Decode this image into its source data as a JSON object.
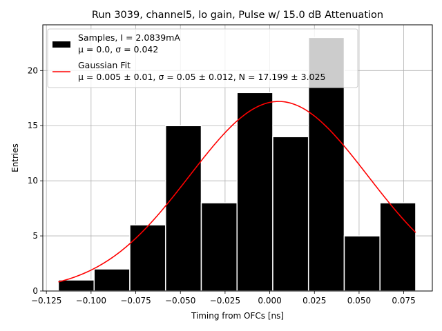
{
  "chart_data": {
    "type": "bar",
    "title": "Run 3039, channel5, lo gain, Pulse w/ 15.0 dB Attenuation",
    "xlabel": "Timing from OFCs [ns]",
    "ylabel": "Entries",
    "xlim": [
      -0.127,
      0.091
    ],
    "ylim": [
      0,
      24.15
    ],
    "grid": true,
    "legend_position": "top-left",
    "x_ticks": [
      {
        "value": -0.125,
        "label": "−0.125"
      },
      {
        "value": -0.1,
        "label": "−0.100"
      },
      {
        "value": -0.075,
        "label": "−0.075"
      },
      {
        "value": -0.05,
        "label": "−0.050"
      },
      {
        "value": -0.025,
        "label": "−0.025"
      },
      {
        "value": 0.0,
        "label": "0.000"
      },
      {
        "value": 0.025,
        "label": "0.025"
      },
      {
        "value": 0.05,
        "label": "0.050"
      },
      {
        "value": 0.075,
        "label": "0.075"
      }
    ],
    "y_ticks": [
      {
        "value": 0,
        "label": "0"
      },
      {
        "value": 5,
        "label": "5"
      },
      {
        "value": 10,
        "label": "10"
      },
      {
        "value": 15,
        "label": "15"
      },
      {
        "value": 20,
        "label": "20"
      }
    ],
    "histogram": {
      "bin_edges": [
        -0.1183,
        -0.0983,
        -0.0783,
        -0.0583,
        -0.0383,
        -0.0183,
        0.0017,
        0.0217,
        0.0417,
        0.0617,
        0.0817
      ],
      "counts": [
        1,
        2,
        6,
        15,
        8,
        18,
        14,
        23,
        5,
        8
      ],
      "color": "#000000",
      "edge_color": "#ffffff"
    },
    "highlight_bar": {
      "bin_index": 7,
      "value": 23,
      "color": "#cccccc"
    },
    "gaussian_fit": {
      "mu": 0.005,
      "sigma": 0.05,
      "N": 17.199,
      "x_range": [
        -0.1183,
        0.0817
      ],
      "color": "#ff0000"
    },
    "legend": [
      {
        "swatch": "rect",
        "color": "#000000",
        "line1": "Samples, I = 2.0839mA",
        "line2": "μ = 0.0, σ = 0.042"
      },
      {
        "swatch": "line",
        "color": "#ff0000",
        "line1": "Gaussian Fit",
        "line2": "μ = 0.005 ± 0.01, σ = 0.05 ± 0.012, N = 17.199 ± 3.025"
      }
    ]
  }
}
